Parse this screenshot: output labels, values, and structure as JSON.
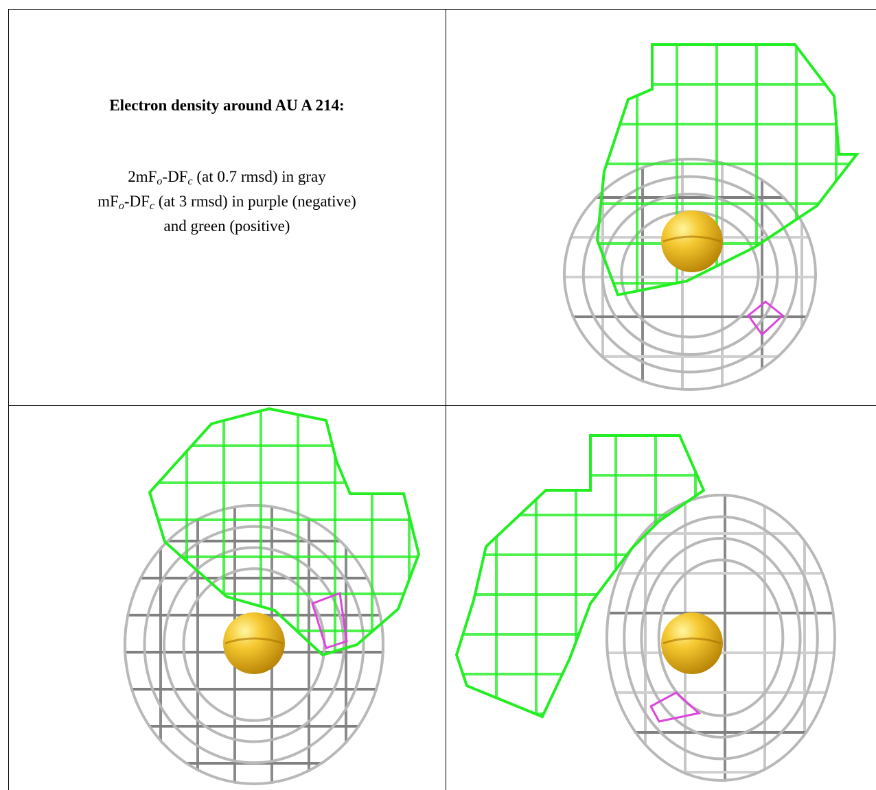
{
  "caption": {
    "title": "Electron density around AU A 214:",
    "lines": [
      [
        {
          "t": "2mF"
        },
        {
          "sub": "o"
        },
        {
          "t": "-DF"
        },
        {
          "sub": "c"
        },
        {
          "t": " (at 0.7 rmsd) in gray"
        }
      ],
      [
        {
          "t": "mF"
        },
        {
          "sub": "o"
        },
        {
          "t": "-DF"
        },
        {
          "sub": "c"
        },
        {
          "t": " (at 3 rmsd) in purple (negative)"
        }
      ],
      [
        {
          "t": "and green (positive)"
        }
      ]
    ]
  }
}
